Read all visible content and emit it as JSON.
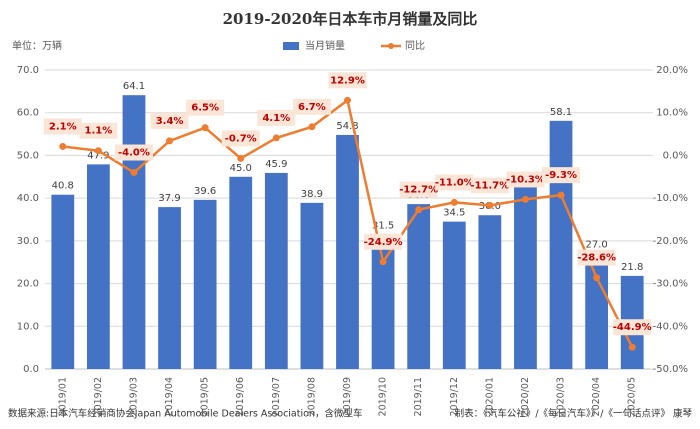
{
  "chart_data": {
    "type": "bar-line",
    "title": "2019-2020年日本车市月销量及同比",
    "unit_label": "单位：万辆",
    "categories": [
      "2019/01",
      "2019/02",
      "2019/03",
      "2019/04",
      "2019/05",
      "2019/06",
      "2019/07",
      "2019/08",
      "2019/09",
      "2019/10",
      "2019/11",
      "2019/12",
      "2020/01",
      "2020/02",
      "2020/03",
      "2020/04",
      "2020/05"
    ],
    "series": [
      {
        "name": "当月销量",
        "color": "#4472c4",
        "kind": "bar",
        "values": [
          40.8,
          47.9,
          64.1,
          37.9,
          39.6,
          45.0,
          45.9,
          38.9,
          54.8,
          31.5,
          38.6,
          34.5,
          36.0,
          43.0,
          58.1,
          27.0,
          21.8
        ],
        "value_labels": [
          "40.8",
          "47.9",
          "64.1",
          "37.9",
          "39.6",
          "45.0",
          "45.9",
          "38.9",
          "54.8",
          "31.5",
          "38.6",
          "34.5",
          "36.0",
          "43.0",
          "58.1",
          "27.0",
          "21.8"
        ]
      },
      {
        "name": "同比",
        "color": "#ed7d31",
        "kind": "line",
        "axis": "y2",
        "values": [
          2.1,
          1.1,
          -4.0,
          3.4,
          6.5,
          -0.7,
          4.1,
          6.7,
          12.9,
          -24.9,
          -12.7,
          -11.0,
          -11.7,
          -10.3,
          -9.3,
          -28.6,
          -44.9
        ],
        "value_labels": [
          "2.1%",
          "1.1%",
          "-4.0%",
          "3.4%",
          "6.5%",
          "-0.7%",
          "4.1%",
          "6.7%",
          "12.9%",
          "-24.9%",
          "-12.7%",
          "-11.0%",
          "-11.7%",
          "-10.3%",
          "-9.3%",
          "-28.6%",
          "-44.9%"
        ]
      }
    ],
    "ylim": [
      0,
      70
    ],
    "yticks": [
      {
        "value": 0,
        "label": "0.0"
      },
      {
        "value": 10,
        "label": "10.0"
      },
      {
        "value": 20,
        "label": "20.0"
      },
      {
        "value": 30,
        "label": "30.0"
      },
      {
        "value": 40,
        "label": "40.0"
      },
      {
        "value": 50,
        "label": "50.0"
      },
      {
        "value": 60,
        "label": "60.0"
      },
      {
        "value": 70,
        "label": "70.0"
      }
    ],
    "y2lim": [
      -50,
      20
    ],
    "y2ticks": [
      {
        "value": -50,
        "label": "-50.0%"
      },
      {
        "value": -40,
        "label": "-40.0%"
      },
      {
        "value": -30,
        "label": "-30.0%"
      },
      {
        "value": -20,
        "label": "-20.0%"
      },
      {
        "value": -10,
        "label": "-10.0%"
      },
      {
        "value": 0,
        "label": "0.0%"
      },
      {
        "value": 10,
        "label": "10.0%"
      },
      {
        "value": 20,
        "label": "20.0%"
      }
    ],
    "grid": true,
    "source": "数据来源:日本汽车经销商协会Japan Automobile Dealers Association，含微型车",
    "credit": "制表：《汽车公社》/《每日汽车》》/《一句话点评》 康琴"
  }
}
